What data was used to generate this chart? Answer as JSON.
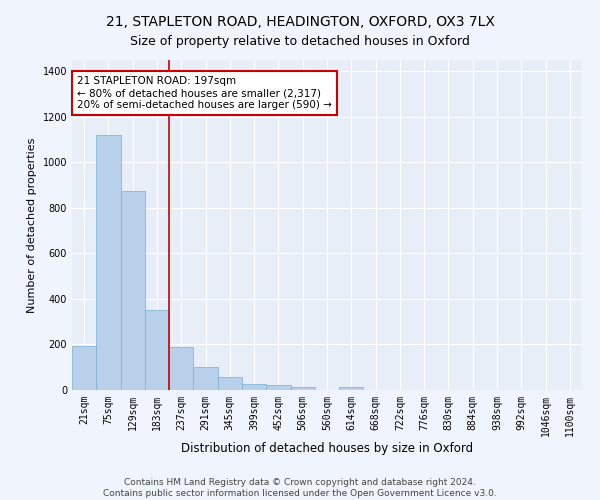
{
  "title_line1": "21, STAPLETON ROAD, HEADINGTON, OXFORD, OX3 7LX",
  "title_line2": "Size of property relative to detached houses in Oxford",
  "xlabel": "Distribution of detached houses by size in Oxford",
  "ylabel": "Number of detached properties",
  "footer": "Contains HM Land Registry data © Crown copyright and database right 2024.\nContains public sector information licensed under the Open Government Licence v3.0.",
  "categories": [
    "21sqm",
    "75sqm",
    "129sqm",
    "183sqm",
    "237sqm",
    "291sqm",
    "345sqm",
    "399sqm",
    "452sqm",
    "506sqm",
    "560sqm",
    "614sqm",
    "668sqm",
    "722sqm",
    "776sqm",
    "830sqm",
    "884sqm",
    "938sqm",
    "992sqm",
    "1046sqm",
    "1100sqm"
  ],
  "values": [
    195,
    1120,
    875,
    350,
    190,
    100,
    55,
    25,
    20,
    15,
    0,
    15,
    0,
    0,
    0,
    0,
    0,
    0,
    0,
    0,
    0
  ],
  "bar_color": "#b8d0ea",
  "bar_edge_color": "#7aafd4",
  "bar_edge_width": 0.5,
  "vline_index": 3,
  "vline_color": "#cc0000",
  "annotation_text": "21 STAPLETON ROAD: 197sqm\n← 80% of detached houses are smaller (2,317)\n20% of semi-detached houses are larger (590) →",
  "annotation_box_facecolor": "#ffffff",
  "annotation_box_edgecolor": "#cc0000",
  "annotation_fontsize": 7.5,
  "ylim": [
    0,
    1450
  ],
  "yticks": [
    0,
    200,
    400,
    600,
    800,
    1000,
    1200,
    1400
  ],
  "title_fontsize1": 10,
  "title_fontsize2": 9,
  "xlabel_fontsize": 8.5,
  "ylabel_fontsize": 8,
  "footer_fontsize": 6.5,
  "bg_color": "#e8eef8",
  "grid_color": "#ffffff",
  "tick_fontsize": 7,
  "fig_bg_color": "#f0f4fc"
}
